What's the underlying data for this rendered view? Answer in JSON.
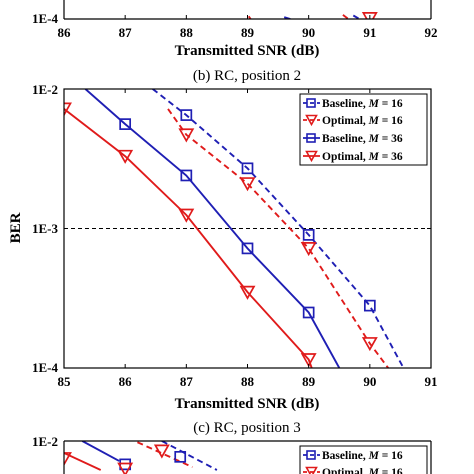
{
  "figure": {
    "background": "#ffffff",
    "colors": {
      "baseline": "#1f1fb4",
      "optimal": "#e01b1b",
      "reference": "#000000"
    }
  },
  "chart_data": [
    {
      "panel": "a",
      "type": "line",
      "visible": "partial (bottom cut off at top of image)",
      "x_ticks": [
        "86",
        "87",
        "88",
        "89",
        "90",
        "91",
        "92"
      ],
      "y_ticks": [
        "1E-4"
      ],
      "xlim": [
        86,
        92
      ],
      "ylim": [
        0.0001,
        0.01
      ],
      "yscale": "log",
      "xlabel": "Transmitted SNR (dB)",
      "ylabel": "",
      "series": [
        {
          "style": "baseline-solid",
          "x": [
            89.6,
            89.7
          ],
          "y": [
            0.000103,
            0.0001
          ]
        },
        {
          "style": "optimal-solid",
          "x": [
            89.02,
            89.05
          ],
          "y": [
            0.0001045,
            0.0001
          ]
        },
        {
          "style": "baseline-dashed",
          "x": [
            90.73,
            90.83
          ],
          "y": [
            0.000106,
            0.0001
          ]
        },
        {
          "style": "optimal-dashed",
          "x": [
            90.56,
            90.65
          ],
          "y": [
            0.000107,
            0.0001
          ]
        },
        {
          "style": "optimal-dashed-marker",
          "x": [
            91.0
          ],
          "y": [
            0.000101
          ]
        }
      ]
    },
    {
      "panel": "b",
      "type": "line",
      "caption": "(b) RC, position 2",
      "x_ticks": [
        "85",
        "86",
        "87",
        "88",
        "89",
        "90",
        "91"
      ],
      "y_ticks": [
        "1E-2",
        "1E-3",
        "1E-4"
      ],
      "xlim": [
        85,
        91
      ],
      "ylim": [
        0.0001,
        0.01
      ],
      "yscale": "log",
      "xlabel": "Transmitted SNR (dB)",
      "ylabel": "BER",
      "reference_line": {
        "y": 0.001,
        "style": "dashed"
      },
      "legend": {
        "position": "top-right",
        "entries": [
          {
            "text": "Baseline, ",
            "m_label": "M",
            "m_value": " = 16",
            "style": "baseline-dashed"
          },
          {
            "text": "Optimal, ",
            "m_label": "M",
            "m_value": " = 16",
            "style": "optimal-dashed"
          },
          {
            "text": "Baseline, ",
            "m_label": "M",
            "m_value": " = 36",
            "style": "baseline-solid"
          },
          {
            "text": "Optimal, ",
            "m_label": "M",
            "m_value": " = 36",
            "style": "optimal-solid"
          }
        ]
      },
      "series": [
        {
          "name": "Baseline, M = 36",
          "style": "baseline-solid",
          "x": [
            85.35,
            86,
            87,
            88,
            89,
            89.5
          ],
          "y": [
            0.01,
            0.0056,
            0.0024,
            0.00072,
            0.00025,
            0.0001
          ]
        },
        {
          "name": "Optimal, M = 36",
          "style": "optimal-solid",
          "x": [
            85,
            86,
            87,
            88,
            89,
            89.05
          ],
          "y": [
            0.0072,
            0.0033,
            0.00125,
            0.00035,
            0.000115,
            0.0001
          ]
        },
        {
          "name": "Baseline, M = 16",
          "style": "baseline-dashed",
          "x": [
            86.45,
            87,
            88,
            89,
            90,
            90.55
          ],
          "y": [
            0.01,
            0.0065,
            0.0027,
            0.0009,
            0.00028,
            0.0001
          ]
        },
        {
          "name": "Optimal, M = 16",
          "style": "optimal-dashed",
          "x": [
            86.7,
            87,
            88,
            89,
            90,
            90.3
          ],
          "y": [
            0.0072,
            0.0047,
            0.0021,
            0.00072,
            0.00015,
            0.0001
          ]
        }
      ],
      "markers": {
        "Baseline, M = 36": [
          86,
          87,
          88,
          89
        ],
        "Optimal, M = 36": [
          85,
          86,
          87,
          88,
          89
        ],
        "Baseline, M = 16": [
          87,
          88,
          89,
          90
        ],
        "Optimal, M = 16": [
          87,
          88,
          89,
          90
        ]
      }
    },
    {
      "panel": "c",
      "type": "line",
      "caption": "(c) RC, position 3",
      "visible": "partial (top only)",
      "y_ticks": [
        "1E-2"
      ],
      "xlim": [
        85,
        91
      ],
      "ylim": [
        0.0001,
        0.01
      ],
      "yscale": "log",
      "legend": {
        "position": "top-right",
        "entries": [
          {
            "text": "Baseline, ",
            "m_label": "M",
            "m_value": " = 16",
            "style": "baseline-dashed"
          },
          {
            "text": "Optimal, ",
            "m_label": "M",
            "m_value": " = 16",
            "style": "optimal-dashed"
          }
        ]
      },
      "series": [
        {
          "style": "baseline-solid",
          "x": [
            85.3,
            85.9
          ],
          "y": [
            0.01,
            0.0072
          ]
        },
        {
          "style": "optimal-solid",
          "x": [
            85,
            85.6
          ],
          "y": [
            0.0082,
            0.0062
          ]
        },
        {
          "style": "baseline-dashed",
          "x": [
            86.6,
            87.5
          ],
          "y": [
            0.01,
            0.0062
          ]
        },
        {
          "style": "optimal-dashed",
          "x": [
            86.2,
            87.1
          ],
          "y": [
            0.0098,
            0.0065
          ]
        }
      ],
      "markers": [
        {
          "shape": "triangle",
          "color": "optimal",
          "x": 85,
          "y": 0.0075
        },
        {
          "shape": "square",
          "color": "baseline",
          "x": 86,
          "y": 0.0068
        },
        {
          "shape": "triangle",
          "color": "optimal",
          "x": 86,
          "y": 0.0063
        },
        {
          "shape": "triangle",
          "color": "optimal",
          "x": 86.6,
          "y": 0.0085
        },
        {
          "shape": "square",
          "color": "baseline",
          "x": 86.9,
          "y": 0.0077
        }
      ]
    }
  ],
  "legend_entries": {
    "baseline_16": {
      "text": "Baseline, ",
      "m": "M",
      "value": " = 16"
    },
    "optimal_16": {
      "text": "Optimal, ",
      "m": "M",
      "value": " = 16"
    },
    "baseline_36": {
      "text": "Baseline, ",
      "m": "M",
      "value": " = 36"
    },
    "optimal_36": {
      "text": "Optimal, ",
      "m": "M",
      "value": " = 36"
    }
  },
  "texts": {
    "a_xlabel": "Transmitted SNR (dB)",
    "a_ytick": "1E-4",
    "b_caption": "(b) RC, position 2",
    "b_xlabel": "Transmitted SNR (dB)",
    "b_ylabel": "BER",
    "b_ytick_top": "1E-2",
    "b_ytick_mid": "1E-3",
    "b_ytick_bottom": "1E-4",
    "c_caption": "(c) RC, position 3",
    "c_ytick_top": "1E-2"
  },
  "a_ticks": [
    "86",
    "87",
    "88",
    "89",
    "90",
    "91",
    "92"
  ],
  "b_ticks": [
    "85",
    "86",
    "87",
    "88",
    "89",
    "90",
    "91"
  ]
}
